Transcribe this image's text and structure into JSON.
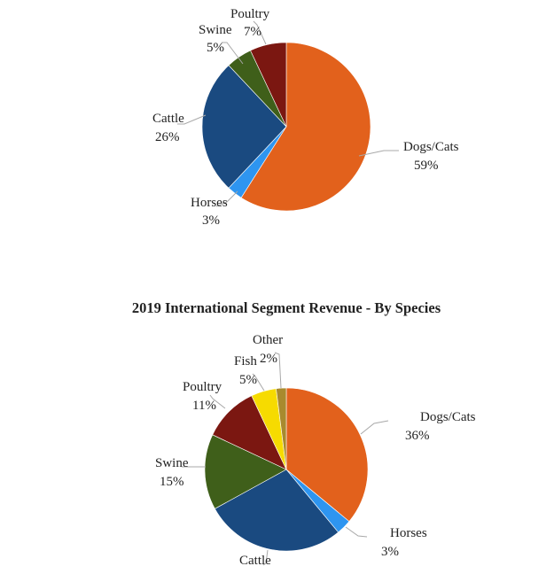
{
  "chart_data": [
    {
      "type": "pie",
      "title": "",
      "start_angle_deg": 0,
      "direction": "clockwise",
      "slices": [
        {
          "label": "Dogs/Cats",
          "value": 59,
          "pct_text": "59%",
          "color": "#E2611C"
        },
        {
          "label": "Horses",
          "value": 3,
          "pct_text": "3%",
          "color": "#2E95F0"
        },
        {
          "label": "Cattle",
          "value": 26,
          "pct_text": "26%",
          "color": "#1A4A80"
        },
        {
          "label": "Swine",
          "value": 5,
          "pct_text": "5%",
          "color": "#3F5F1A"
        },
        {
          "label": "Poultry",
          "value": 7,
          "pct_text": "7%",
          "color": "#7B1711"
        }
      ]
    },
    {
      "type": "pie",
      "title": "2019 International Segment Revenue - By Species",
      "start_angle_deg": 0,
      "direction": "clockwise",
      "slices": [
        {
          "label": "Dogs/Cats",
          "value": 36,
          "pct_text": "36%",
          "color": "#E2611C"
        },
        {
          "label": "Horses",
          "value": 3,
          "pct_text": "3%",
          "color": "#2E95F0"
        },
        {
          "label": "Cattle",
          "value": 28,
          "pct_text": "",
          "color": "#1A4A80"
        },
        {
          "label": "Swine",
          "value": 15,
          "pct_text": "15%",
          "color": "#3F5F1A"
        },
        {
          "label": "Poultry",
          "value": 11,
          "pct_text": "11%",
          "color": "#7B1711"
        },
        {
          "label": "Fish",
          "value": 5,
          "pct_text": "5%",
          "color": "#F6DB00"
        },
        {
          "label": "Other",
          "value": 2,
          "pct_text": "2%",
          "color": "#A88A2E"
        }
      ]
    }
  ]
}
